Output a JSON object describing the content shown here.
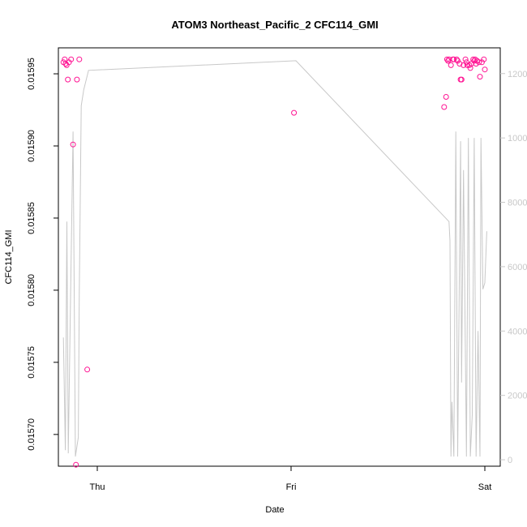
{
  "chart_data": {
    "type": "scatter",
    "title": "ATOM3 Northeast_Pacific_2 CFC114_GMI",
    "xlabel": "Date",
    "ylabel": "CFC114_GMI",
    "x_tick_labels": [
      "Thu",
      "Fri",
      "Sat"
    ],
    "x_range_days": [
      -0.2,
      2.0
    ],
    "ylim": [
      0.015678,
      0.015968
    ],
    "y_ticks": [
      0.0157,
      0.01575,
      0.0158,
      0.01585,
      0.0159,
      0.01595
    ],
    "y_tick_labels": [
      "0.01570",
      "0.01575",
      "0.01580",
      "0.01585",
      "0.01590",
      "0.01595"
    ],
    "y2lim": [
      -200,
      12800
    ],
    "y2_ticks": [
      0,
      2000,
      4000,
      6000,
      8000,
      10000,
      12000
    ],
    "y2_tick_labels": [
      "0",
      "2000",
      "4000",
      "6000",
      "8000",
      "10000",
      "12000"
    ],
    "grid": false,
    "colors": {
      "points": "#ff1493",
      "line": "#c8c8c8",
      "axes": "#000000",
      "secondary_axis": "#c8c8c8"
    },
    "series": [
      {
        "marker": "open-circle",
        "axis": "left",
        "x": [
          -0.175,
          -0.168,
          -0.163,
          -0.158,
          -0.152,
          -0.146,
          -0.135,
          -0.125,
          -0.11,
          -0.105,
          -0.093,
          -0.052,
          1.015,
          1.79,
          1.8,
          1.805,
          1.81,
          1.815,
          1.825,
          1.835,
          1.84,
          1.855,
          1.86,
          1.87,
          1.875,
          1.88,
          1.89,
          1.9,
          1.905,
          1.91,
          1.92,
          1.925,
          1.93,
          1.94,
          1.945,
          1.95,
          1.955,
          1.96,
          1.97,
          1.975,
          1.985,
          1.995,
          2.0
        ],
        "y": [
          0.015958,
          0.01596,
          0.015957,
          0.015956,
          0.015946,
          0.015958,
          0.01596,
          0.015901,
          0.015679,
          0.015946,
          0.01596,
          0.015745,
          0.015923,
          0.015927,
          0.015934,
          0.01596,
          0.015959,
          0.01596,
          0.015956,
          0.01596,
          0.01596,
          0.01596,
          0.015959,
          0.015957,
          0.015946,
          0.015946,
          0.015956,
          0.01596,
          0.015958,
          0.015956,
          0.015956,
          0.015954,
          0.015957,
          0.01596,
          0.015959,
          0.01596,
          0.015957,
          0.015959,
          0.015958,
          0.015948,
          0.015958,
          0.01596,
          0.015953
        ]
      },
      {
        "marker": "line",
        "axis": "right",
        "x": [
          -0.175,
          -0.165,
          -0.157,
          -0.15,
          -0.138,
          -0.125,
          -0.113,
          -0.098,
          -0.093,
          -0.083,
          -0.07,
          -0.045,
          1.025,
          1.815,
          1.82,
          1.825,
          1.83,
          1.84,
          1.85,
          1.86,
          1.875,
          1.88,
          1.89,
          1.905,
          1.915,
          1.925,
          1.935,
          1.945,
          1.955,
          1.965,
          1.975,
          1.98,
          1.99,
          2.0,
          2.01
        ],
        "y": [
          3800,
          300,
          7400,
          200,
          5000,
          10200,
          100,
          700,
          5200,
          11000,
          11500,
          12100,
          12400,
          7400,
          6800,
          100,
          1800,
          100,
          10200,
          100,
          9900,
          2400,
          9000,
          100,
          10000,
          100,
          1400,
          10000,
          100,
          4000,
          100,
          10000,
          5300,
          5500,
          7100
        ]
      }
    ]
  }
}
